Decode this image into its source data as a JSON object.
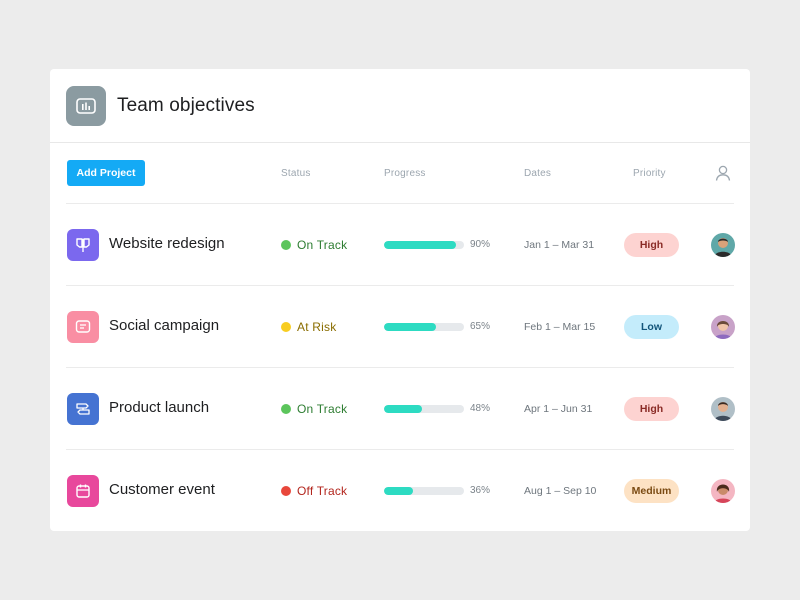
{
  "header": {
    "title": "Team objectives",
    "icon": "bar-chart-icon",
    "icon_color": "#8b9ba1"
  },
  "toolbar": {
    "add_label": "Add Project",
    "accent": "#14aaf5"
  },
  "columns": {
    "status": "Status",
    "progress": "Progress",
    "dates": "Dates",
    "priority": "Priority",
    "assignee_icon": "user-icon"
  },
  "rows": [
    {
      "name": "Website redesign",
      "icon": "signpost-icon",
      "icon_color": "#7b68ee",
      "status": "On Track",
      "status_color": "#5cc55c",
      "status_text_color": "#2e7d32",
      "progress": 90,
      "progress_label": "90%",
      "dates": "Jan 1 – Mar 31",
      "priority": "High",
      "priority_bg": "#fdd3d1",
      "priority_fg": "#8a2b26",
      "avatar": "avatar-icon",
      "avatar_bg": "#5fa8a8"
    },
    {
      "name": "Social campaign",
      "icon": "chat-icon",
      "icon_color": "#f98ea3",
      "status": "At Risk",
      "status_color": "#f8cd21",
      "status_text_color": "#8a6d00",
      "progress": 65,
      "progress_label": "65%",
      "dates": "Feb 1 – Mar 15",
      "priority": "Low",
      "priority_bg": "#c4ecfb",
      "priority_fg": "#12557a",
      "avatar": "avatar-icon",
      "avatar_bg": "#c8a2c8"
    },
    {
      "name": "Product launch",
      "icon": "directions-icon",
      "icon_color": "#4573d2",
      "status": "On Track",
      "status_color": "#5cc55c",
      "status_text_color": "#2e7d32",
      "progress": 48,
      "progress_label": "48%",
      "dates": "Apr 1 – Jun 31",
      "priority": "High",
      "priority_bg": "#fdd3d1",
      "priority_fg": "#8a2b26",
      "avatar": "avatar-icon",
      "avatar_bg": "#b0bfc7"
    },
    {
      "name": "Customer event",
      "icon": "calendar-icon",
      "icon_color": "#e8489c",
      "status": "Off Track",
      "status_color": "#e8473b",
      "status_text_color": "#b3261e",
      "progress": 36,
      "progress_label": "36%",
      "dates": "Aug 1 – Sep 10",
      "priority": "Medium",
      "priority_bg": "#fde2c4",
      "priority_fg": "#7a4a12",
      "avatar": "avatar-icon",
      "avatar_bg": "#f4b6c2"
    }
  ]
}
